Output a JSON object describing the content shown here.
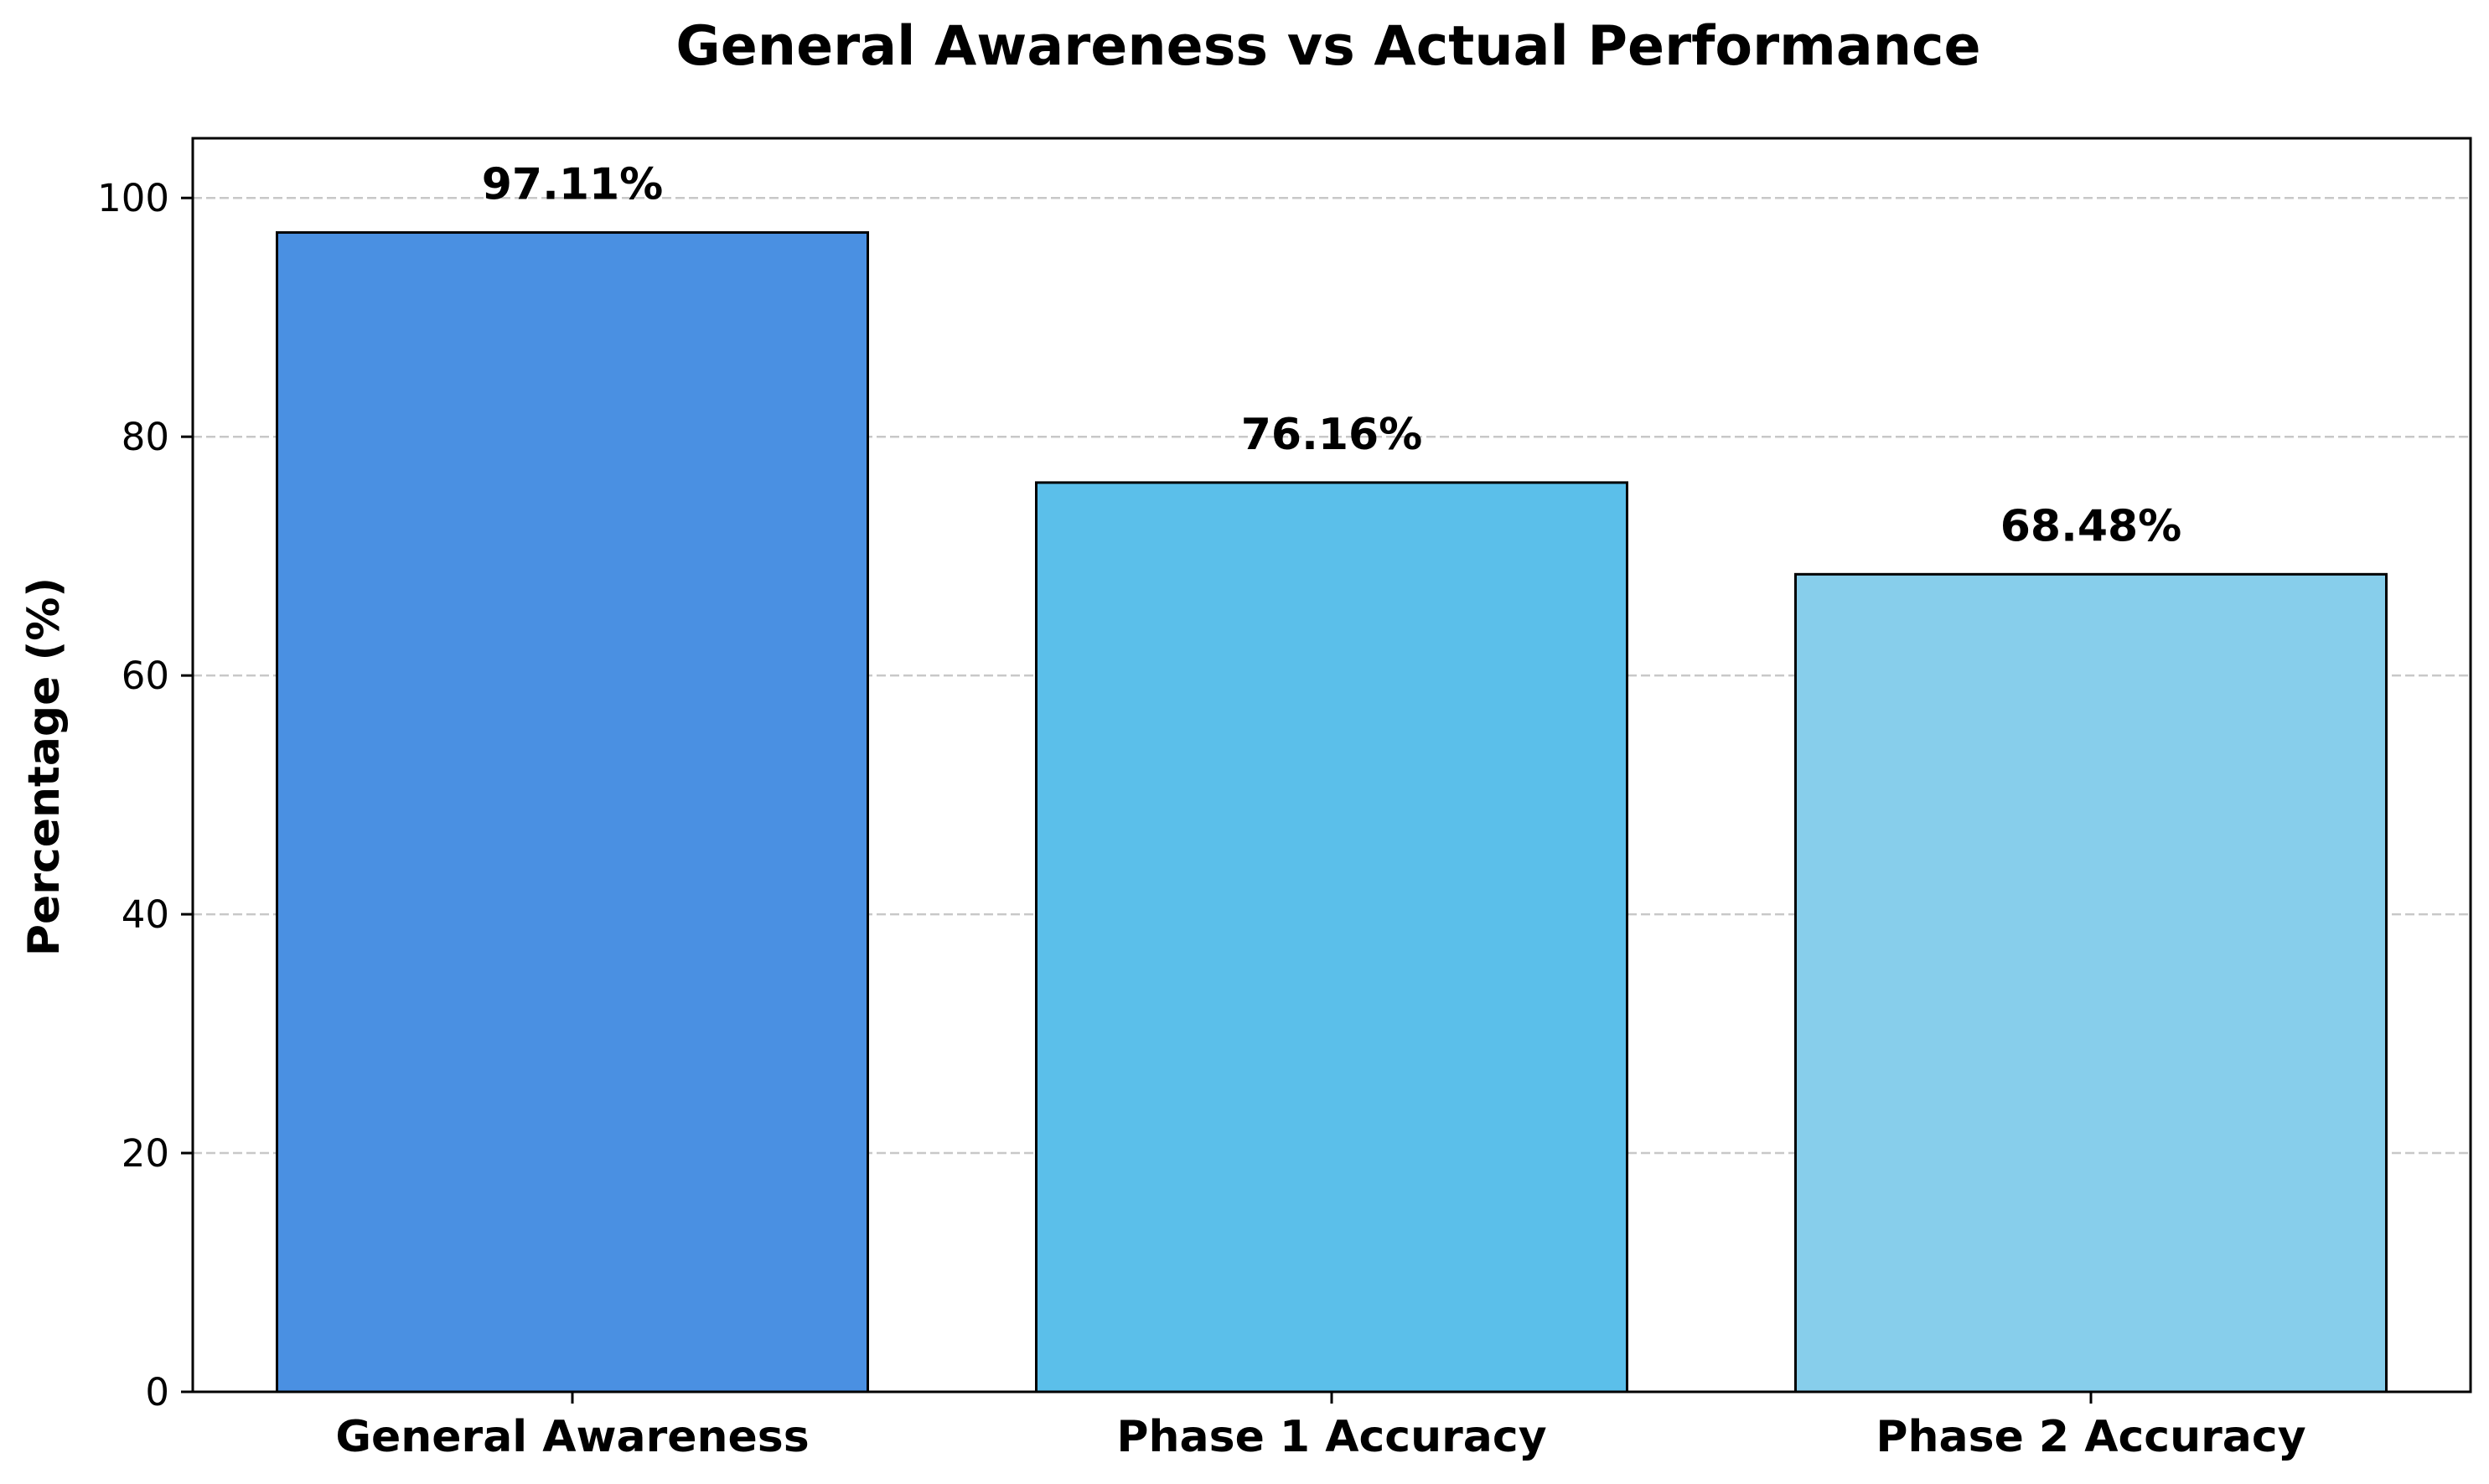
{
  "chart_data": {
    "type": "bar",
    "title": "General Awareness vs Actual Performance",
    "xlabel": "",
    "ylabel": "Percentage (%)",
    "categories": [
      "General Awareness",
      "Phase 1 Accuracy",
      "Phase 2 Accuracy"
    ],
    "values": [
      97.11,
      76.16,
      68.48
    ],
    "data_labels": [
      "97.11%",
      "76.16%",
      "68.48%"
    ],
    "colors": [
      "#4a90e2",
      "#5bbfea",
      "#87ceeb"
    ],
    "edge_color": "#000000",
    "ylim": [
      0,
      105
    ],
    "yticks": [
      0,
      20,
      40,
      60,
      80,
      100
    ],
    "ytick_labels": [
      "0",
      "20",
      "40",
      "60",
      "80",
      "100"
    ],
    "grid": {
      "axis": "y",
      "style": "dashed",
      "color": "#c8c8c8"
    },
    "legend": "none"
  }
}
